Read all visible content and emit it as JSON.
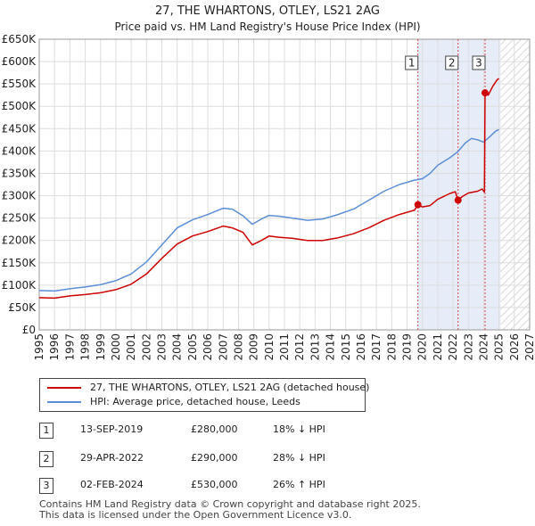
{
  "title": "27, THE WHARTONS, OTLEY, LS21 2AG",
  "subtitle": "Price paid vs. HM Land Registry's House Price Index (HPI)",
  "colors": {
    "property": "#cc0000",
    "hpi": "#5b8ed6",
    "shade": "#e6ecf8",
    "sale_line": "#dd4444",
    "grid": "#dddddd"
  },
  "chart_data": {
    "type": "line",
    "xlim": [
      1995,
      2027
    ],
    "ylim": [
      0,
      650000
    ],
    "x_ticks": [
      1995,
      1996,
      1997,
      1998,
      1999,
      2000,
      2001,
      2002,
      2003,
      2004,
      2005,
      2006,
      2007,
      2008,
      2009,
      2010,
      2011,
      2012,
      2013,
      2014,
      2015,
      2016,
      2017,
      2018,
      2019,
      2020,
      2021,
      2022,
      2023,
      2024,
      2025,
      2026,
      2027
    ],
    "y_ticks": [
      {
        "value": 0,
        "label": "£0"
      },
      {
        "value": 50000,
        "label": "£50K"
      },
      {
        "value": 100000,
        "label": "£100K"
      },
      {
        "value": 150000,
        "label": "£150K"
      },
      {
        "value": 200000,
        "label": "£200K"
      },
      {
        "value": 250000,
        "label": "£250K"
      },
      {
        "value": 300000,
        "label": "£300K"
      },
      {
        "value": 350000,
        "label": "£350K"
      },
      {
        "value": 400000,
        "label": "£400K"
      },
      {
        "value": 450000,
        "label": "£450K"
      },
      {
        "value": 500000,
        "label": "£500K"
      },
      {
        "value": 550000,
        "label": "£550K"
      },
      {
        "value": 600000,
        "label": "£600K"
      },
      {
        "value": 650000,
        "label": "£650K"
      }
    ],
    "future_from": 2025.1,
    "series": [
      {
        "name": "27, THE WHARTONS, OTLEY, LS21 2AG (detached house)",
        "points": [
          [
            1995.0,
            72000
          ],
          [
            1996.0,
            71000
          ],
          [
            1997.0,
            76000
          ],
          [
            1998.0,
            79000
          ],
          [
            1999.0,
            83000
          ],
          [
            2000.0,
            90000
          ],
          [
            2001.0,
            102000
          ],
          [
            2002.0,
            125000
          ],
          [
            2003.0,
            160000
          ],
          [
            2004.0,
            192000
          ],
          [
            2005.0,
            210000
          ],
          [
            2006.0,
            220000
          ],
          [
            2007.0,
            232000
          ],
          [
            2007.6,
            228000
          ],
          [
            2008.3,
            218000
          ],
          [
            2008.9,
            190000
          ],
          [
            2009.5,
            200000
          ],
          [
            2010.0,
            210000
          ],
          [
            2010.7,
            207000
          ],
          [
            2011.5,
            205000
          ],
          [
            2012.5,
            200000
          ],
          [
            2013.5,
            200000
          ],
          [
            2014.5,
            206000
          ],
          [
            2015.5,
            215000
          ],
          [
            2016.5,
            228000
          ],
          [
            2017.5,
            245000
          ],
          [
            2018.5,
            258000
          ],
          [
            2019.5,
            268000
          ],
          [
            2019.7,
            280000
          ],
          [
            2020.0,
            275000
          ],
          [
            2020.5,
            278000
          ],
          [
            2021.0,
            292000
          ],
          [
            2021.8,
            305000
          ],
          [
            2022.15,
            309000
          ],
          [
            2022.33,
            290000
          ],
          [
            2022.6,
            298000
          ],
          [
            2023.0,
            306000
          ],
          [
            2023.6,
            310000
          ],
          [
            2023.9,
            315000
          ],
          [
            2024.05,
            308000
          ],
          [
            2024.09,
            530000
          ],
          [
            2024.3,
            525000
          ],
          [
            2024.6,
            545000
          ],
          [
            2024.9,
            560000
          ],
          [
            2025.0,
            562000
          ]
        ]
      },
      {
        "name": "HPI: Average price, detached house, Leeds",
        "points": [
          [
            1995.0,
            88000
          ],
          [
            1996.0,
            87000
          ],
          [
            1997.0,
            92000
          ],
          [
            1998.0,
            96000
          ],
          [
            1999.0,
            101000
          ],
          [
            2000.0,
            110000
          ],
          [
            2001.0,
            125000
          ],
          [
            2002.0,
            152000
          ],
          [
            2003.0,
            190000
          ],
          [
            2004.0,
            228000
          ],
          [
            2005.0,
            246000
          ],
          [
            2006.0,
            258000
          ],
          [
            2007.0,
            272000
          ],
          [
            2007.6,
            270000
          ],
          [
            2008.3,
            255000
          ],
          [
            2008.9,
            236000
          ],
          [
            2009.5,
            248000
          ],
          [
            2010.0,
            256000
          ],
          [
            2010.7,
            254000
          ],
          [
            2011.5,
            250000
          ],
          [
            2012.5,
            245000
          ],
          [
            2013.5,
            248000
          ],
          [
            2014.5,
            258000
          ],
          [
            2015.5,
            270000
          ],
          [
            2016.5,
            290000
          ],
          [
            2017.5,
            310000
          ],
          [
            2018.5,
            325000
          ],
          [
            2019.5,
            335000
          ],
          [
            2020.0,
            338000
          ],
          [
            2020.5,
            350000
          ],
          [
            2021.0,
            368000
          ],
          [
            2021.8,
            385000
          ],
          [
            2022.3,
            398000
          ],
          [
            2022.8,
            418000
          ],
          [
            2023.2,
            428000
          ],
          [
            2023.6,
            425000
          ],
          [
            2024.0,
            420000
          ],
          [
            2024.4,
            432000
          ],
          [
            2024.8,
            445000
          ],
          [
            2025.0,
            448000
          ]
        ]
      }
    ],
    "sales": [
      {
        "label": "1",
        "x": 2019.71,
        "y": 280000
      },
      {
        "label": "2",
        "x": 2022.33,
        "y": 290000
      },
      {
        "label": "3",
        "x": 2024.09,
        "y": 530000
      }
    ]
  },
  "legend": {
    "property": "27, THE WHARTONS, OTLEY, LS21 2AG (detached house)",
    "hpi": "HPI: Average price, detached house, Leeds"
  },
  "transactions": [
    {
      "num": "1",
      "date": "13-SEP-2019",
      "price": "£280,000",
      "hpi": "18% ↓ HPI"
    },
    {
      "num": "2",
      "date": "29-APR-2022",
      "price": "£290,000",
      "hpi": "28% ↓ HPI"
    },
    {
      "num": "3",
      "date": "02-FEB-2024",
      "price": "£530,000",
      "hpi": "26% ↑ HPI"
    }
  ],
  "footer": {
    "line1": "Contains HM Land Registry data © Crown copyright and database right 2025.",
    "line2": "This data is licensed under the Open Government Licence v3.0."
  }
}
